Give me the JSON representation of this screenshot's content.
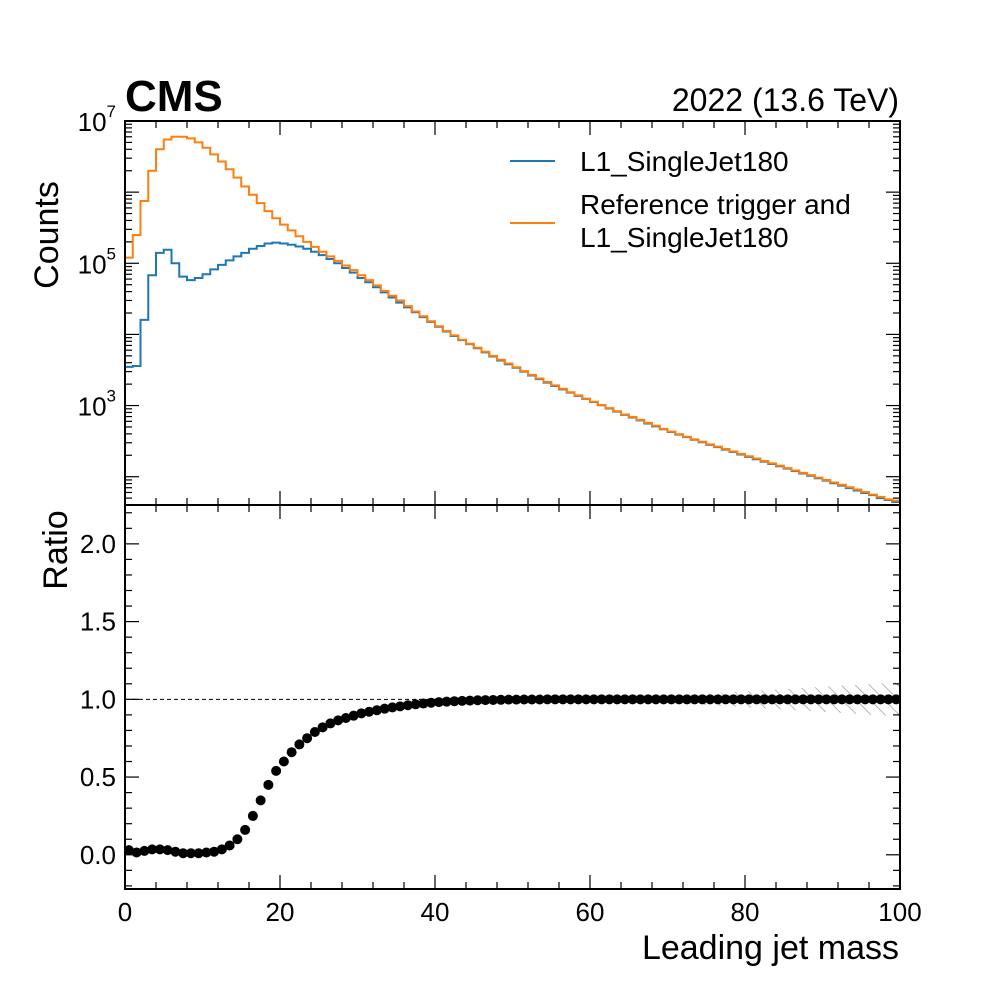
{
  "experiment_label": "CMS",
  "lumi_label": "2022 (13.6 TeV)",
  "chart_data": [
    {
      "type": "line",
      "subtype": "step-histogram",
      "ylabel": "Counts",
      "xlabel": "",
      "yscale": "log",
      "xlim": [
        0,
        100
      ],
      "ylim": [
        40,
        10000000
      ],
      "ytick_labels": [
        {
          "base": "10",
          "exp": "3",
          "value": 1000
        },
        {
          "base": "10",
          "exp": "5",
          "value": 100000
        },
        {
          "base": "10",
          "exp": "7",
          "value": 10000000
        }
      ],
      "legend": {
        "position": "top-right"
      },
      "bin_width": 1,
      "x_start": 0,
      "series": [
        {
          "name": "L1_SingleJet180",
          "lines": [
            "L1_SingleJet180"
          ],
          "color": "#1f77b4",
          "values": [
            3500,
            3600,
            16000,
            68000,
            140000,
            155000,
            100000,
            65000,
            58000,
            62000,
            70000,
            82000,
            95000,
            110000,
            125000,
            140000,
            160000,
            175000,
            190000,
            195000,
            190000,
            182000,
            172000,
            160000,
            145000,
            130000,
            115000,
            100000,
            86000,
            74000,
            62000,
            54000,
            46000,
            39000,
            33000,
            28000,
            24000,
            20500,
            17500,
            15000,
            12800,
            11000,
            9500,
            8300,
            7300,
            6400,
            5600,
            4900,
            4300,
            3800,
            3400,
            3000,
            2650,
            2350,
            2100,
            1880,
            1690,
            1520,
            1370,
            1240,
            1120,
            1010,
            910,
            820,
            740,
            680,
            620,
            560,
            510,
            465,
            425,
            390,
            360,
            330,
            305,
            280,
            260,
            240,
            222,
            205,
            190,
            176,
            163,
            151,
            140,
            130,
            120,
            111,
            103,
            95,
            88,
            81,
            75,
            69,
            64,
            59,
            55,
            50,
            47,
            44
          ]
        },
        {
          "name": "Reference trigger and L1_SingleJet180",
          "lines": [
            "Reference trigger and",
            "L1_SingleJet180"
          ],
          "color": "#ff7f0e",
          "values": [
            120000,
            250000,
            750000,
            2000000,
            4000000,
            5500000,
            6000000,
            6000000,
            5700000,
            5000000,
            4200000,
            3400000,
            2700000,
            2100000,
            1600000,
            1200000,
            920000,
            700000,
            540000,
            430000,
            350000,
            290000,
            240000,
            200000,
            170000,
            145000,
            125000,
            108000,
            93000,
            80000,
            68000,
            58000,
            49000,
            41000,
            35000,
            30000,
            25000,
            21000,
            18000,
            15300,
            13000,
            11200,
            9700,
            8400,
            7400,
            6500,
            5700,
            5000,
            4400,
            3900,
            3450,
            3050,
            2700,
            2400,
            2150,
            1920,
            1720,
            1540,
            1390,
            1250,
            1130,
            1020,
            920,
            830,
            750,
            690,
            630,
            570,
            520,
            470,
            430,
            395,
            365,
            335,
            310,
            285,
            265,
            245,
            226,
            209,
            194,
            180,
            166,
            154,
            143,
            132,
            122,
            113,
            105,
            97,
            90,
            83,
            77,
            71,
            66,
            61,
            56,
            52,
            48,
            46
          ]
        }
      ]
    },
    {
      "type": "scatter",
      "ylabel": "Ratio",
      "xlabel": "Leading jet mass",
      "xlim": [
        0,
        100
      ],
      "ylim": [
        -0.22,
        2.25
      ],
      "xticks": [
        0,
        20,
        40,
        60,
        80,
        100
      ],
      "yticks": [
        0.0,
        0.5,
        1.0,
        1.5,
        2.0
      ],
      "ytick_labels": [
        "0.0",
        "0.5",
        "1.0",
        "1.5",
        "2.0"
      ],
      "reference_line": 1.0,
      "x": [
        0.5,
        1.5,
        2.5,
        3.5,
        4.5,
        5.5,
        6.5,
        7.5,
        8.5,
        9.5,
        10.5,
        11.5,
        12.5,
        13.5,
        14.5,
        15.5,
        16.5,
        17.5,
        18.5,
        19.5,
        20.5,
        21.5,
        22.5,
        23.5,
        24.5,
        25.5,
        26.5,
        27.5,
        28.5,
        29.5,
        30.5,
        31.5,
        32.5,
        33.5,
        34.5,
        35.5,
        36.5,
        37.5,
        38.5,
        39.5,
        40.5,
        41.5,
        42.5,
        43.5,
        44.5,
        45.5,
        46.5,
        47.5,
        48.5,
        49.5,
        50.5,
        51.5,
        52.5,
        53.5,
        54.5,
        55.5,
        56.5,
        57.5,
        58.5,
        59.5,
        60.5,
        61.5,
        62.5,
        63.5,
        64.5,
        65.5,
        66.5,
        67.5,
        68.5,
        69.5,
        70.5,
        71.5,
        72.5,
        73.5,
        74.5,
        75.5,
        76.5,
        77.5,
        78.5,
        79.5,
        80.5,
        81.5,
        82.5,
        83.5,
        84.5,
        85.5,
        86.5,
        87.5,
        88.5,
        89.5,
        90.5,
        91.5,
        92.5,
        93.5,
        94.5,
        95.5,
        96.5,
        97.5,
        98.5,
        99.5
      ],
      "y": [
        0.03,
        0.015,
        0.025,
        0.035,
        0.035,
        0.03,
        0.02,
        0.01,
        0.01,
        0.01,
        0.015,
        0.02,
        0.035,
        0.06,
        0.1,
        0.16,
        0.25,
        0.35,
        0.45,
        0.54,
        0.6,
        0.66,
        0.71,
        0.75,
        0.79,
        0.82,
        0.845,
        0.865,
        0.88,
        0.895,
        0.91,
        0.92,
        0.93,
        0.94,
        0.948,
        0.955,
        0.962,
        0.968,
        0.973,
        0.978,
        0.982,
        0.985,
        0.988,
        0.99,
        0.992,
        0.994,
        0.995,
        0.996,
        0.997,
        0.998,
        0.998,
        0.999,
        0.999,
        0.999,
        1.0,
        1.0,
        1.0,
        1.0,
        1.0,
        1.0,
        1.0,
        1.0,
        1.0,
        1.0,
        1.0,
        1.0,
        1.0,
        1.0,
        1.0,
        1.0,
        1.0,
        1.0,
        1.0,
        1.0,
        1.0,
        1.0,
        1.0,
        1.0,
        1.0,
        1.0,
        1.0,
        1.0,
        1.0,
        1.0,
        1.0,
        1.0,
        1.0,
        1.0,
        1.0,
        1.0,
        1.0,
        1.0,
        1.0,
        1.0,
        1.0,
        1.0,
        1.0,
        1.0,
        1.0,
        1.0
      ],
      "uncertainty_band": {
        "x_from": 66,
        "half_width_start": 0.01,
        "half_width_end": 0.11
      }
    }
  ]
}
